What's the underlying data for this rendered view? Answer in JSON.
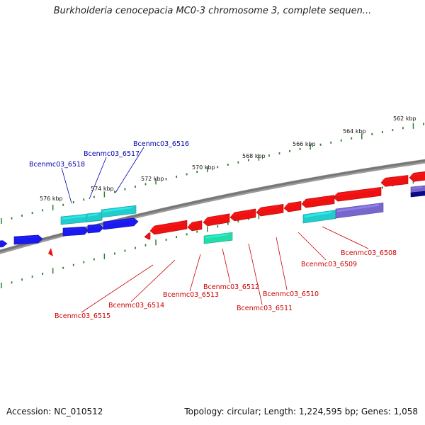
{
  "title": "Burkholderia cenocepacia MC0-3 chromosome 3, complete sequen...",
  "footer": {
    "accession": "Accession: NC_010512",
    "summary": "Topology: circular; Length: 1,224,595 bp; Genes: 1,058"
  },
  "colors": {
    "backbone": "#777777",
    "minor_tick": "#2e7d32",
    "gene_red": "#ee1111",
    "gene_blue": "#1a1aee",
    "gene_cyan": "#22cccc",
    "gene_green": "#22ddaa",
    "gene_purple": "#7766cc",
    "gene_navy": "#0a0a88",
    "label_red": "#cc0000",
    "label_blue": "#0000aa"
  },
  "scale_labels": [
    {
      "text": "562 kbp"
    },
    {
      "text": "564 kbp"
    },
    {
      "text": "566 kbp"
    },
    {
      "text": "568 kbp"
    },
    {
      "text": "570 kbp"
    },
    {
      "text": "572 kbp"
    },
    {
      "text": "574 kbp"
    },
    {
      "text": "576 kbp"
    }
  ],
  "genes_forward_labeled": [
    {
      "text": "Bcenmc03_6516"
    },
    {
      "text": "Bcenmc03_6517"
    },
    {
      "text": "Bcenmc03_6518"
    }
  ],
  "genes_reverse_labeled": [
    {
      "text": "Bcenmc03_6508"
    },
    {
      "text": "Bcenmc03_6509"
    },
    {
      "text": "Bcenmc03_6510"
    },
    {
      "text": "Bcenmc03_6511"
    },
    {
      "text": "Bcenmc03_6512"
    },
    {
      "text": "Bcenmc03_6513"
    },
    {
      "text": "Bcenmc03_6514"
    },
    {
      "text": "Bcenmc03_6515"
    }
  ]
}
